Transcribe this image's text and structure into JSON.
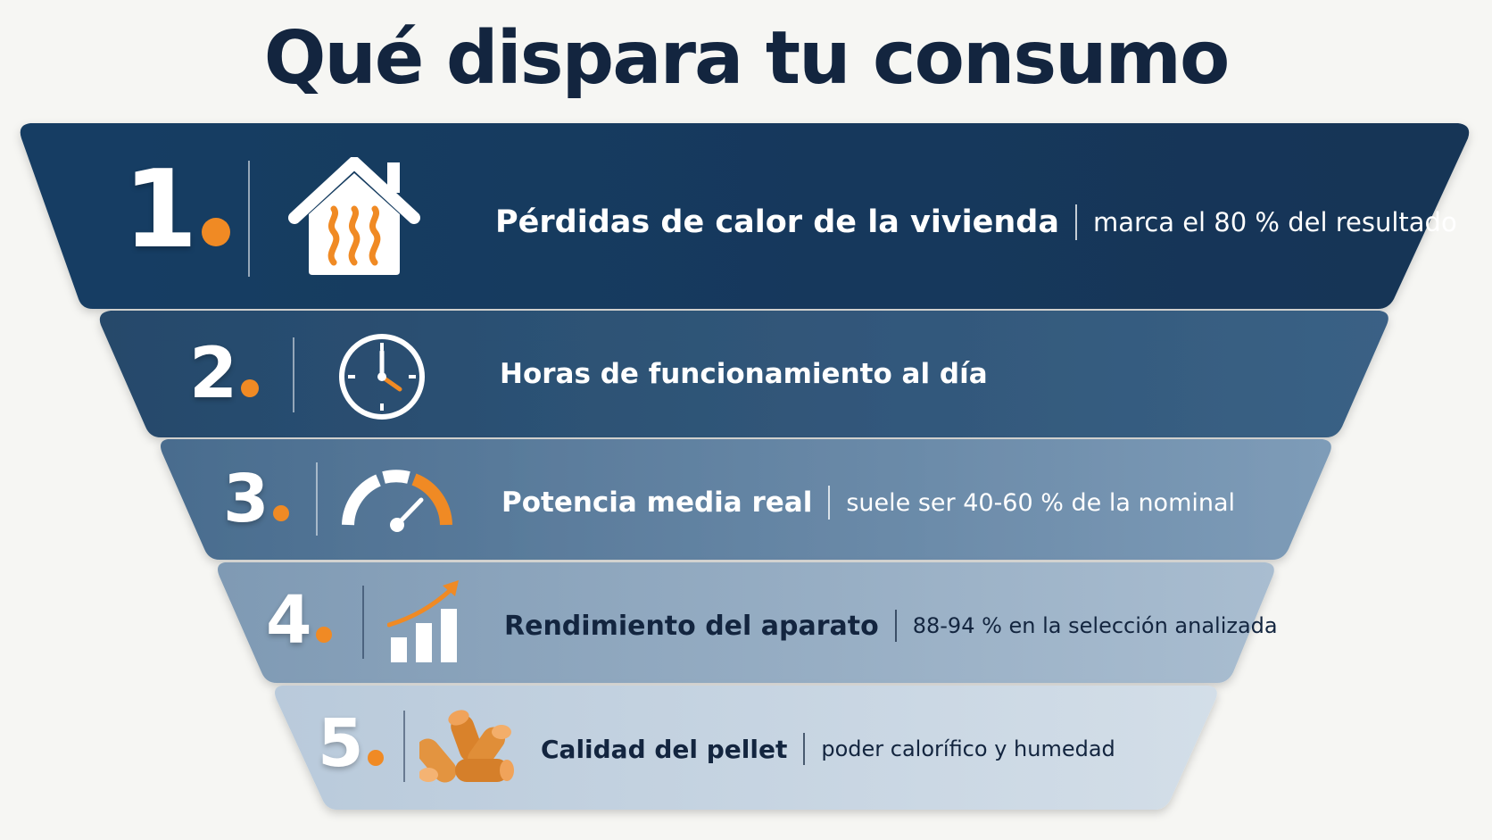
{
  "title": "Qué dispara tu consumo",
  "tiers": [
    {
      "number": "1",
      "label": "Pérdidas de calor de la vivienda",
      "note": "marca el 80 % del resultado",
      "icon": "house-heat-icon"
    },
    {
      "number": "2",
      "label": "Horas de funcionamiento al día",
      "note": "",
      "icon": "clock-icon"
    },
    {
      "number": "3",
      "label": "Potencia media real",
      "note": "suele ser 40-60 % de la nominal",
      "icon": "gauge-icon"
    },
    {
      "number": "4",
      "label": "Rendimiento del aparato",
      "note": "88-94 % en la selección analizada",
      "icon": "bar-chart-growth-icon"
    },
    {
      "number": "5",
      "label": "Calidad del pellet",
      "note": "poder calorífico y humedad",
      "icon": "pellets-icon"
    }
  ],
  "colors": {
    "title": "#13253f",
    "accent": "#f08a24",
    "tier1": "#163f66",
    "tier2": "#2c5375",
    "tier3": "#56799a",
    "tier4": "#8fa8c0",
    "tier5": "#c6d4e1"
  }
}
